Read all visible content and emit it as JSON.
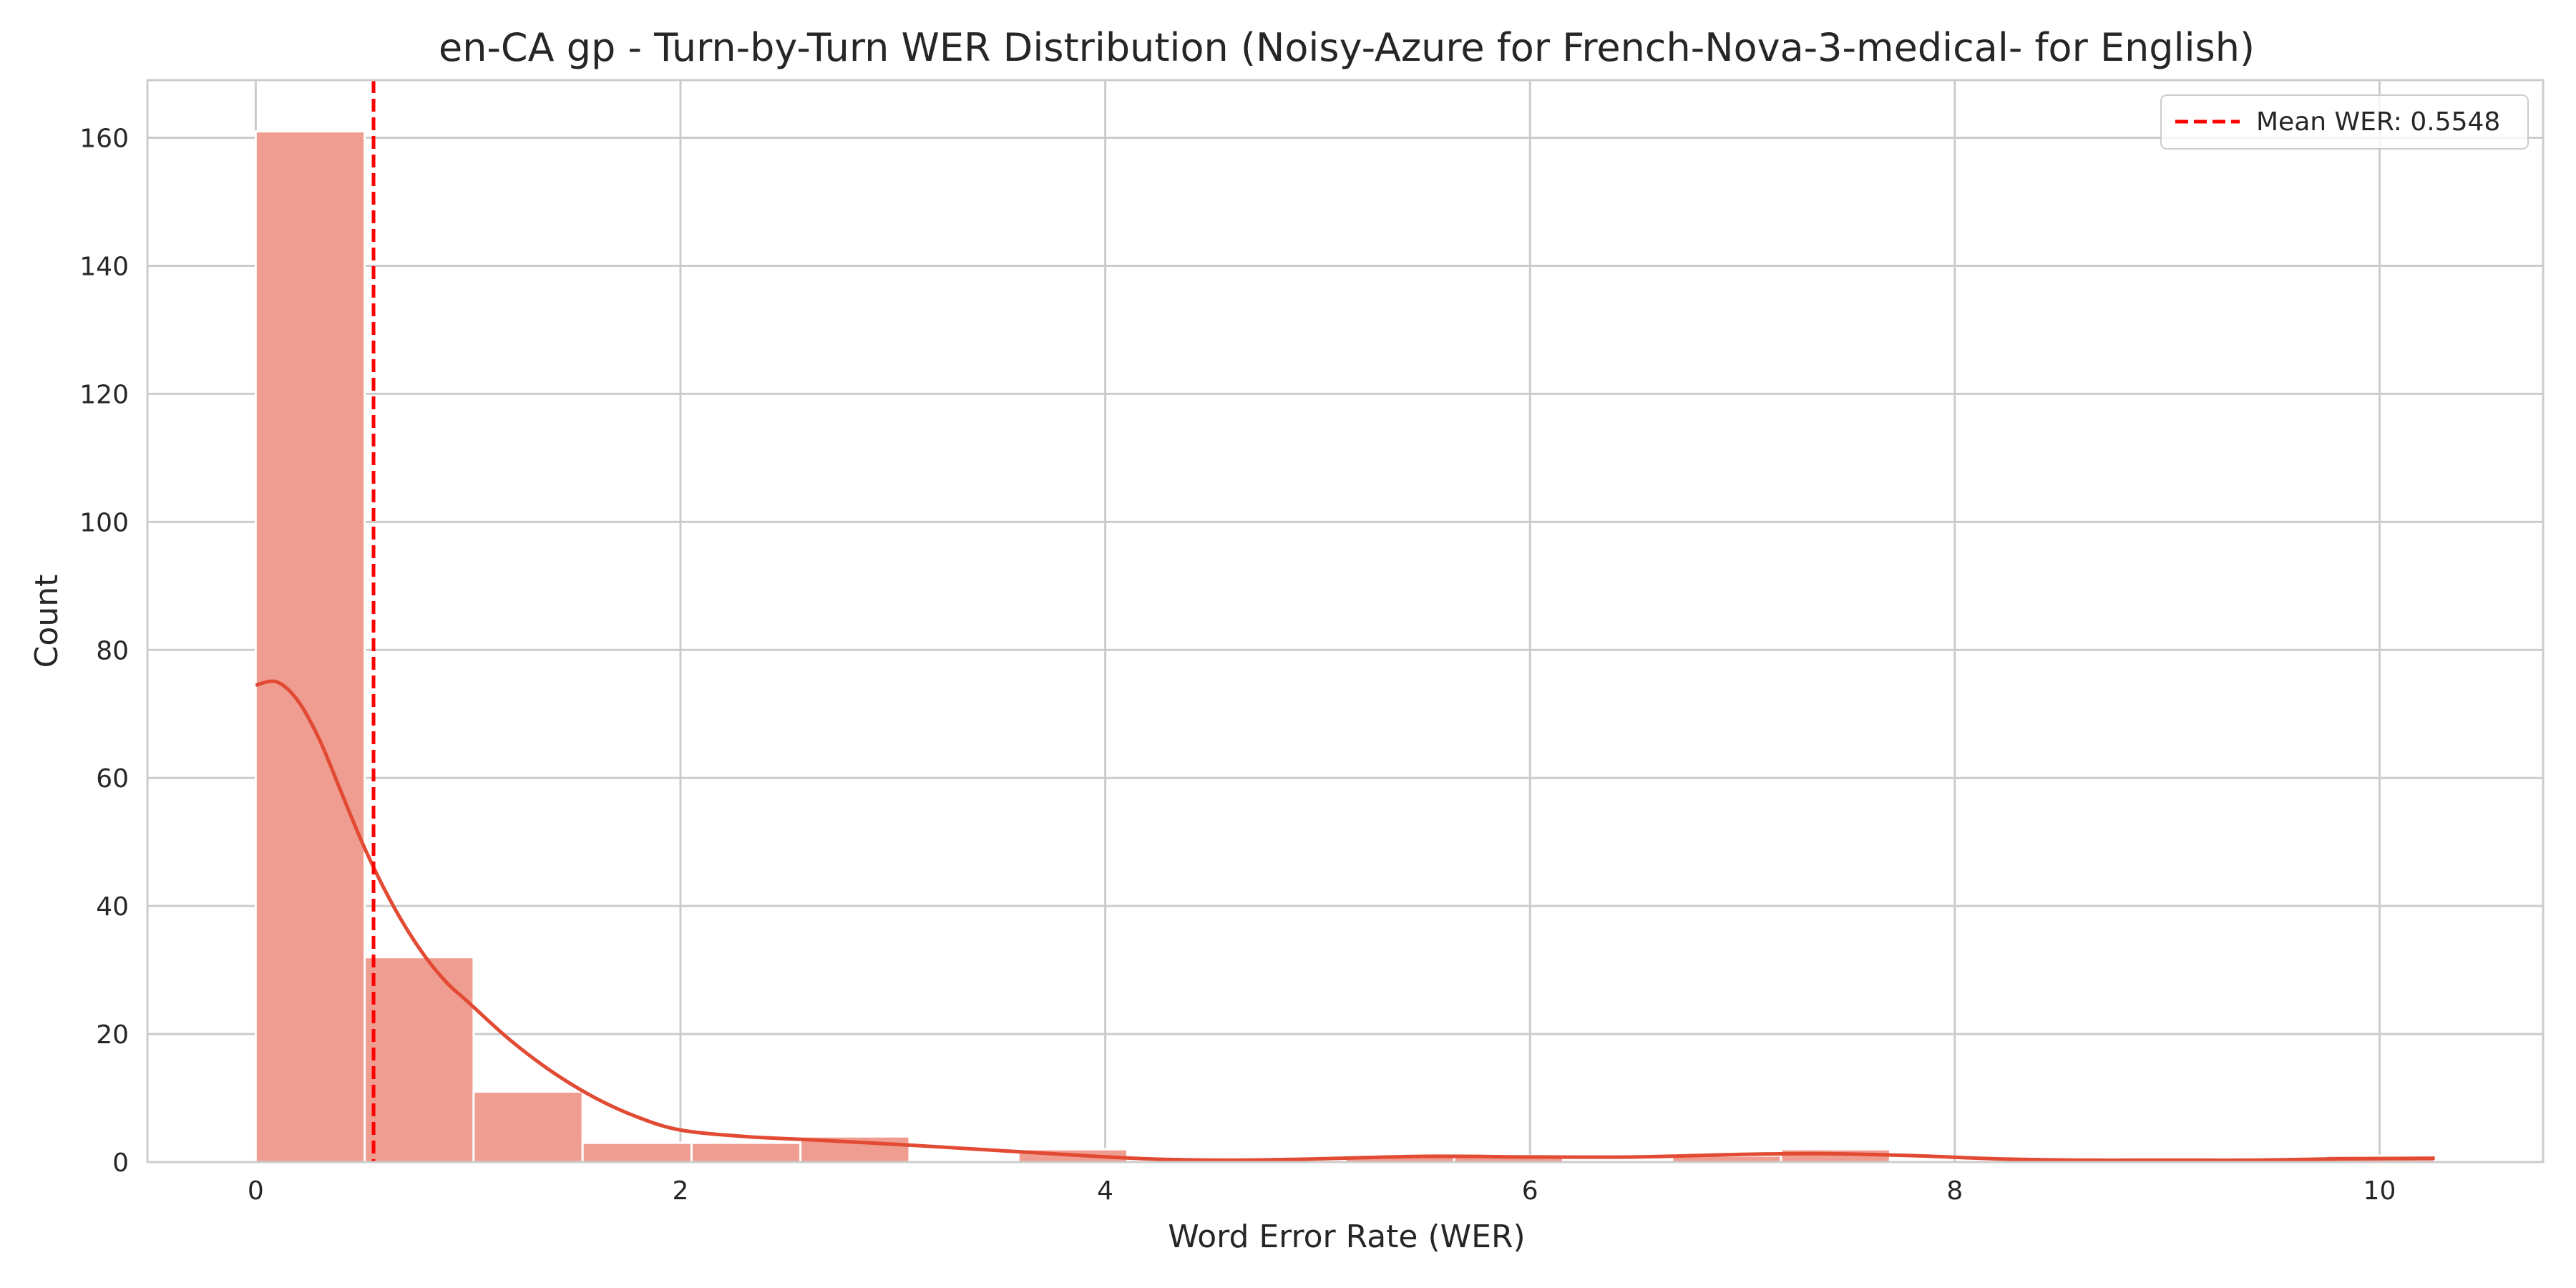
{
  "chart_data": {
    "type": "bar",
    "title": "en-CA gp - Turn-by-Turn WER Distribution (Noisy-Azure for French-Nova-3-medical- for English)",
    "xlabel": "Word Error Rate (WER)",
    "ylabel": "Count",
    "xlim": [
      -0.51,
      10.77
    ],
    "ylim": [
      0,
      169
    ],
    "xticks": [
      0,
      2,
      4,
      6,
      8,
      10
    ],
    "yticks": [
      0,
      20,
      40,
      60,
      80,
      100,
      120,
      140,
      160
    ],
    "grid": true,
    "legend_position": "top-right",
    "bin_width": 0.513,
    "bins": [
      {
        "start": 0.0,
        "count": 161
      },
      {
        "start": 0.513,
        "count": 32
      },
      {
        "start": 1.026,
        "count": 11
      },
      {
        "start": 1.539,
        "count": 3
      },
      {
        "start": 2.052,
        "count": 3
      },
      {
        "start": 2.565,
        "count": 4
      },
      {
        "start": 3.078,
        "count": 0
      },
      {
        "start": 3.591,
        "count": 2
      },
      {
        "start": 4.104,
        "count": 0
      },
      {
        "start": 4.617,
        "count": 0
      },
      {
        "start": 5.13,
        "count": 1
      },
      {
        "start": 5.643,
        "count": 1
      },
      {
        "start": 6.156,
        "count": 0
      },
      {
        "start": 6.669,
        "count": 1
      },
      {
        "start": 7.182,
        "count": 2
      },
      {
        "start": 7.695,
        "count": 0
      },
      {
        "start": 8.208,
        "count": 0
      },
      {
        "start": 8.721,
        "count": 0
      },
      {
        "start": 9.234,
        "count": 0
      },
      {
        "start": 9.747,
        "count": 1
      }
    ],
    "kde": {
      "x": [
        0,
        0.1,
        0.2,
        0.3,
        0.4,
        0.5,
        0.6,
        0.7,
        0.8,
        0.9,
        1.0,
        1.2,
        1.4,
        1.6,
        1.8,
        2.0,
        2.3,
        2.6,
        3.0,
        3.4,
        3.8,
        4.2,
        4.6,
        5.0,
        5.5,
        6.0,
        6.5,
        7.0,
        7.4,
        7.8,
        8.2,
        8.6,
        9.0,
        9.4,
        9.8,
        10.26
      ],
      "y": [
        74.5,
        75.0,
        72,
        66,
        58,
        50,
        43,
        37,
        32,
        28,
        25,
        19,
        14,
        10,
        7,
        5,
        4,
        3.5,
        2.8,
        2,
        1.2,
        0.5,
        0.3,
        0.5,
        0.9,
        0.8,
        0.8,
        1.2,
        1.3,
        1.0,
        0.5,
        0.3,
        0.3,
        0.3,
        0.5,
        0.6
      ]
    },
    "mean_line": {
      "x": 0.5548,
      "label": "Mean WER: 0.5548"
    },
    "colors": {
      "bar_fill": "#ef9d90",
      "bar_edge": "#ffffff",
      "kde_line": "#e24a33",
      "mean_line": "#ff0000",
      "grid": "#cccccc",
      "axes_edge": "#cccccc"
    }
  }
}
